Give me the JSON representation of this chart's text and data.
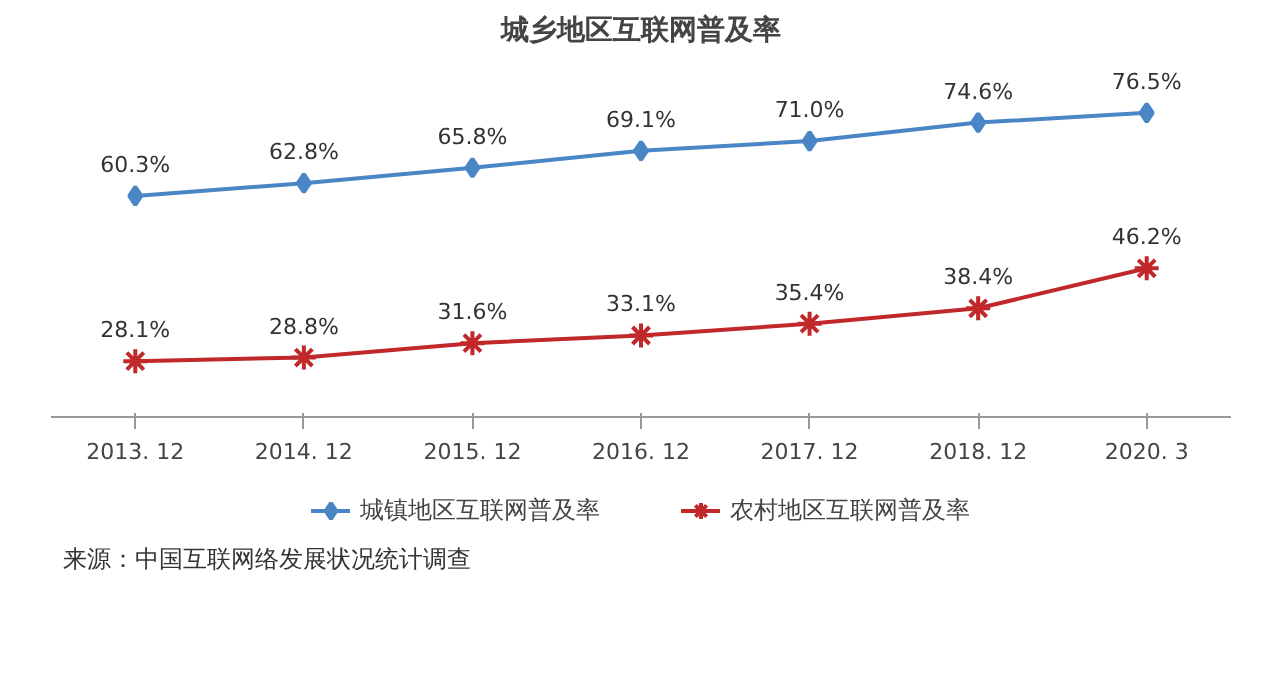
{
  "chart_data": {
    "type": "line",
    "title": "城乡地区互联网普及率",
    "categories": [
      "2013. 12",
      "2014. 12",
      "2015. 12",
      "2016. 12",
      "2017. 12",
      "2018. 12",
      "2020. 3"
    ],
    "series": [
      {
        "name": "城镇地区互联网普及率",
        "color": "#4a86c5",
        "marker": "diamond",
        "values": [
          60.3,
          62.8,
          65.8,
          69.1,
          71.0,
          74.6,
          76.5
        ],
        "value_labels": [
          "60.3%",
          "62.8%",
          "65.8%",
          "69.1%",
          "71.0%",
          "74.6%",
          "76.5%"
        ]
      },
      {
        "name": "农村地区互联网普及率",
        "color": "#c0282a",
        "marker": "cross",
        "values": [
          28.1,
          28.8,
          31.6,
          33.1,
          35.4,
          38.4,
          46.2
        ],
        "value_labels": [
          "28.1%",
          "28.8%",
          "31.6%",
          "33.1%",
          "35.4%",
          "38.4%",
          "46.2%"
        ]
      }
    ],
    "tick_labels": "x",
    "grid": false,
    "legend": "bottom",
    "line_style": "solid",
    "annotations": [
      "来源：中国互联网络发展状况统计调查"
    ]
  }
}
